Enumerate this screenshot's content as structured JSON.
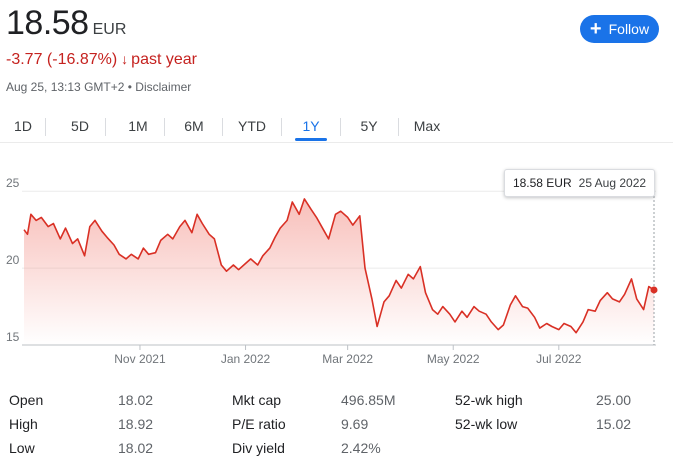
{
  "quote": {
    "price": "18.58",
    "currency": "EUR",
    "change": "-3.77 (-16.87%)",
    "change_arrow": "↓",
    "change_period": "past year",
    "timestamp": "Aug 25, 13:13 GMT+2",
    "separator": "•",
    "disclaimer": "Disclaimer",
    "down_color": "#c5221f"
  },
  "follow_button": {
    "label": "Follow",
    "icon": "plus-icon",
    "color": "#1a73e8"
  },
  "tabs": [
    "1D",
    "5D",
    "1M",
    "6M",
    "YTD",
    "1Y",
    "5Y",
    "Max"
  ],
  "active_tab": "1Y",
  "tooltip": {
    "value": "18.58 EUR",
    "date": "25 Aug 2022"
  },
  "chart_data": {
    "type": "area",
    "y_ticks": [
      "25",
      "20",
      "15"
    ],
    "ylim": [
      15,
      25.6
    ],
    "x_ticks": [
      {
        "label": "Nov 2021",
        "date": "2021-11-01"
      },
      {
        "label": "Jan 2022",
        "date": "2022-01-01"
      },
      {
        "label": "Mar 2022",
        "date": "2022-03-01"
      },
      {
        "label": "May 2022",
        "date": "2022-05-01"
      },
      {
        "label": "Jul 2022",
        "date": "2022-07-01"
      }
    ],
    "xlim": [
      "2021-08-26",
      "2022-08-25"
    ],
    "line_color": "#d93025",
    "fill_color": "#f28b82",
    "series": [
      {
        "points": [
          [
            "2021-08-26",
            22.5
          ],
          [
            "2021-08-28",
            22.2
          ],
          [
            "2021-08-30",
            23.5
          ],
          [
            "2021-09-02",
            23.1
          ],
          [
            "2021-09-05",
            23.3
          ],
          [
            "2021-09-09",
            22.7
          ],
          [
            "2021-09-12",
            22.9
          ],
          [
            "2021-09-16",
            21.9
          ],
          [
            "2021-09-19",
            22.6
          ],
          [
            "2021-09-23",
            21.6
          ],
          [
            "2021-09-26",
            21.9
          ],
          [
            "2021-09-30",
            20.8
          ],
          [
            "2021-10-03",
            22.7
          ],
          [
            "2021-10-06",
            23.1
          ],
          [
            "2021-10-10",
            22.4
          ],
          [
            "2021-10-13",
            22.0
          ],
          [
            "2021-10-17",
            21.5
          ],
          [
            "2021-10-20",
            20.9
          ],
          [
            "2021-10-24",
            20.6
          ],
          [
            "2021-10-27",
            20.9
          ],
          [
            "2021-10-31",
            20.6
          ],
          [
            "2021-11-03",
            21.3
          ],
          [
            "2021-11-06",
            20.9
          ],
          [
            "2021-11-10",
            21.0
          ],
          [
            "2021-11-13",
            21.8
          ],
          [
            "2021-11-17",
            22.2
          ],
          [
            "2021-11-20",
            21.9
          ],
          [
            "2021-11-24",
            22.7
          ],
          [
            "2021-11-27",
            23.1
          ],
          [
            "2021-12-01",
            22.3
          ],
          [
            "2021-12-04",
            23.5
          ],
          [
            "2021-12-07",
            22.9
          ],
          [
            "2021-12-11",
            22.2
          ],
          [
            "2021-12-14",
            21.9
          ],
          [
            "2021-12-18",
            20.2
          ],
          [
            "2021-12-21",
            19.8
          ],
          [
            "2021-12-25",
            20.2
          ],
          [
            "2021-12-28",
            19.9
          ],
          [
            "2022-01-01",
            20.3
          ],
          [
            "2022-01-04",
            20.6
          ],
          [
            "2022-01-08",
            20.2
          ],
          [
            "2022-01-11",
            20.8
          ],
          [
            "2022-01-15",
            21.3
          ],
          [
            "2022-01-18",
            22.0
          ],
          [
            "2022-01-21",
            22.6
          ],
          [
            "2022-01-25",
            23.1
          ],
          [
            "2022-01-28",
            24.3
          ],
          [
            "2022-02-01",
            23.5
          ],
          [
            "2022-02-04",
            24.5
          ],
          [
            "2022-02-08",
            23.8
          ],
          [
            "2022-02-11",
            23.3
          ],
          [
            "2022-02-15",
            22.5
          ],
          [
            "2022-02-18",
            21.9
          ],
          [
            "2022-02-22",
            23.5
          ],
          [
            "2022-02-25",
            23.7
          ],
          [
            "2022-03-01",
            23.3
          ],
          [
            "2022-03-04",
            22.8
          ],
          [
            "2022-03-08",
            23.4
          ],
          [
            "2022-03-11",
            20.0
          ],
          [
            "2022-03-15",
            18.0
          ],
          [
            "2022-03-18",
            16.2
          ],
          [
            "2022-03-22",
            17.8
          ],
          [
            "2022-03-25",
            18.2
          ],
          [
            "2022-03-29",
            19.2
          ],
          [
            "2022-04-01",
            18.7
          ],
          [
            "2022-04-05",
            19.6
          ],
          [
            "2022-04-08",
            19.3
          ],
          [
            "2022-04-12",
            20.1
          ],
          [
            "2022-04-15",
            18.4
          ],
          [
            "2022-04-19",
            17.3
          ],
          [
            "2022-04-22",
            17.0
          ],
          [
            "2022-04-25",
            17.5
          ],
          [
            "2022-04-29",
            17.0
          ],
          [
            "2022-05-02",
            16.5
          ],
          [
            "2022-05-06",
            17.2
          ],
          [
            "2022-05-09",
            16.8
          ],
          [
            "2022-05-13",
            17.5
          ],
          [
            "2022-05-16",
            17.2
          ],
          [
            "2022-05-20",
            17.0
          ],
          [
            "2022-05-23",
            16.5
          ],
          [
            "2022-05-27",
            16.0
          ],
          [
            "2022-05-30",
            16.3
          ],
          [
            "2022-06-03",
            17.6
          ],
          [
            "2022-06-06",
            18.2
          ],
          [
            "2022-06-10",
            17.5
          ],
          [
            "2022-06-13",
            17.4
          ],
          [
            "2022-06-17",
            16.8
          ],
          [
            "2022-06-20",
            16.1
          ],
          [
            "2022-06-24",
            16.4
          ],
          [
            "2022-06-27",
            16.2
          ],
          [
            "2022-07-01",
            16.0
          ],
          [
            "2022-07-04",
            16.4
          ],
          [
            "2022-07-08",
            16.2
          ],
          [
            "2022-07-11",
            15.8
          ],
          [
            "2022-07-15",
            16.5
          ],
          [
            "2022-07-18",
            17.3
          ],
          [
            "2022-07-22",
            17.2
          ],
          [
            "2022-07-25",
            17.9
          ],
          [
            "2022-07-29",
            18.4
          ],
          [
            "2022-08-01",
            18.0
          ],
          [
            "2022-08-05",
            17.8
          ],
          [
            "2022-08-08",
            18.3
          ],
          [
            "2022-08-12",
            19.3
          ],
          [
            "2022-08-15",
            18.0
          ],
          [
            "2022-08-19",
            17.3
          ],
          [
            "2022-08-22",
            18.8
          ],
          [
            "2022-08-25",
            18.58
          ]
        ]
      }
    ]
  },
  "stats": {
    "col1": [
      {
        "label": "Open",
        "value": "18.02"
      },
      {
        "label": "High",
        "value": "18.92"
      },
      {
        "label": "Low",
        "value": "18.02"
      }
    ],
    "col2": [
      {
        "label": "Mkt cap",
        "value": "496.85M"
      },
      {
        "label": "P/E ratio",
        "value": "9.69"
      },
      {
        "label": "Div yield",
        "value": "2.42%"
      }
    ],
    "col3": [
      {
        "label": "52-wk high",
        "value": "25.00"
      },
      {
        "label": "52-wk low",
        "value": "15.02"
      }
    ]
  }
}
